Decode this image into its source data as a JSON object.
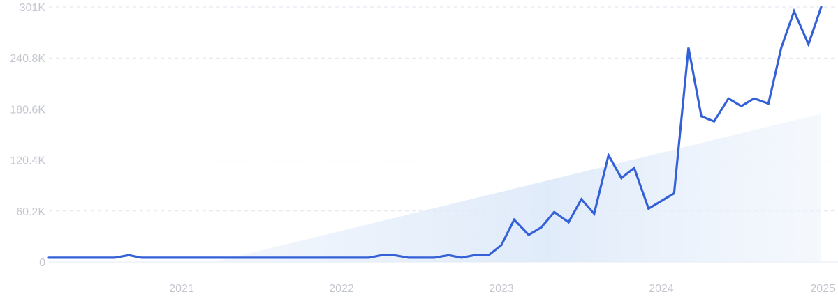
{
  "chart_data": {
    "type": "line",
    "title": "",
    "xlabel": "",
    "ylabel": "",
    "ylim": [
      0,
      301000
    ],
    "xlim": [
      2020.17,
      2025.0
    ],
    "grid": true,
    "legend": "none",
    "colors": {
      "line": "#3461d8",
      "trend_fill": "#dde9f9",
      "grid": "#dfe3ec",
      "tick_text": "#c4c6d0"
    },
    "y_ticks": [
      {
        "value": 0,
        "label": "0"
      },
      {
        "value": 60200,
        "label": "60.2K"
      },
      {
        "value": 120400,
        "label": "120.4K"
      },
      {
        "value": 180600,
        "label": "180.6K"
      },
      {
        "value": 240800,
        "label": "240.8K"
      },
      {
        "value": 301000,
        "label": "301K"
      }
    ],
    "x_ticks": [
      {
        "value": 2021,
        "label": "2021"
      },
      {
        "value": 2022,
        "label": "2022"
      },
      {
        "value": 2023,
        "label": "2023"
      },
      {
        "value": 2024,
        "label": "2024"
      },
      {
        "value": 2025,
        "label": "2025"
      }
    ],
    "trend": {
      "x": [
        2021.2,
        2025.0
      ],
      "y": [
        0,
        175000
      ]
    },
    "series": [
      {
        "x": [
          2020.17,
          2020.25,
          2020.33,
          2020.42,
          2020.5,
          2020.58,
          2020.67,
          2020.75,
          2020.83,
          2020.92,
          2021.0,
          2021.08,
          2021.17,
          2021.25,
          2021.33,
          2021.42,
          2021.5,
          2021.58,
          2021.67,
          2021.75,
          2021.83,
          2021.92,
          2022.0,
          2022.08,
          2022.17,
          2022.25,
          2022.33,
          2022.42,
          2022.5,
          2022.58,
          2022.67,
          2022.75,
          2022.83,
          2022.92,
          2023.0,
          2023.08,
          2023.17,
          2023.25,
          2023.33,
          2023.42,
          2023.5,
          2023.58,
          2023.67,
          2023.75,
          2023.83,
          2023.92,
          2024.0,
          2024.08,
          2024.17,
          2024.25,
          2024.33,
          2024.42,
          2024.5,
          2024.58,
          2024.67,
          2024.75,
          2024.83,
          2024.92,
          2025.0
        ],
        "values": [
          5000,
          5000,
          5000,
          5000,
          5000,
          5000,
          8000,
          5000,
          5000,
          5000,
          5000,
          5000,
          5000,
          5000,
          5000,
          5000,
          5000,
          5000,
          5000,
          5000,
          5000,
          5000,
          5000,
          5000,
          5000,
          8000,
          8000,
          5000,
          5000,
          5000,
          8000,
          5000,
          8000,
          8000,
          20000,
          50000,
          32000,
          41000,
          59000,
          47000,
          74000,
          57000,
          126000,
          99000,
          111000,
          63000,
          72000,
          81000,
          253000,
          172000,
          166000,
          193000,
          184000,
          193000,
          187000,
          253000,
          296000,
          257000,
          301000
        ]
      }
    ]
  }
}
